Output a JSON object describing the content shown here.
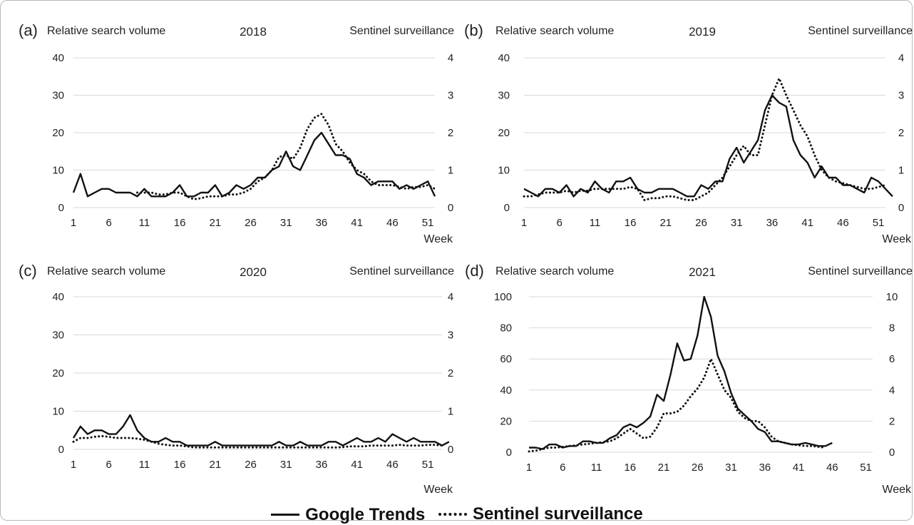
{
  "legend": {
    "gt_label": "Google Trends",
    "ss_label": "Sentinel surveillance"
  },
  "chart_data": [
    {
      "type": "line",
      "panel": "(a)",
      "title": "2018",
      "ylabel_left": "Relative search volume",
      "ylabel_right": "Sentinel surveillance",
      "xlabel": "Week",
      "x_ticks": [
        1,
        6,
        11,
        16,
        21,
        26,
        31,
        36,
        41,
        46,
        51
      ],
      "x_range": [
        1,
        52
      ],
      "ylim_left": [
        0,
        40
      ],
      "ylim_right": [
        0,
        4
      ],
      "yticks_left": [
        0,
        10,
        20,
        30,
        40
      ],
      "yticks_right": [
        0,
        1,
        2,
        3,
        4
      ],
      "grid": true,
      "series": [
        {
          "name": "Google Trends",
          "axis": "left",
          "style": "solid",
          "x_start": 1,
          "values": [
            4,
            9,
            3,
            4,
            5,
            5,
            4,
            4,
            4,
            3,
            5,
            3,
            3,
            3,
            4,
            6,
            3,
            3,
            4,
            4,
            6,
            3,
            4,
            6,
            5,
            6,
            8,
            8,
            10,
            11,
            15,
            11,
            10,
            14,
            18,
            20,
            17,
            14,
            14,
            13,
            9,
            8,
            6,
            7,
            7,
            7,
            5,
            6,
            5,
            6,
            7,
            3
          ]
        },
        {
          "name": "Sentinel surveillance",
          "axis": "right",
          "style": "dotted",
          "x_start": 10,
          "values": [
            0.4,
            0.4,
            0.4,
            0.35,
            0.35,
            0.4,
            0.4,
            0.3,
            0.22,
            0.25,
            0.3,
            0.3,
            0.3,
            0.35,
            0.35,
            0.4,
            0.5,
            0.7,
            0.8,
            1.0,
            1.35,
            1.4,
            1.3,
            1.6,
            2.1,
            2.4,
            2.5,
            2.2,
            1.7,
            1.5,
            1.2,
            1.0,
            0.9,
            0.7,
            0.6,
            0.6,
            0.6,
            0.55,
            0.5,
            0.55,
            0.55,
            0.6,
            0.5
          ]
        }
      ]
    },
    {
      "type": "line",
      "panel": "(b)",
      "title": "2019",
      "ylabel_left": "Relative search volume",
      "ylabel_right": "Sentinel surveillance",
      "xlabel": "Week",
      "x_ticks": [
        1,
        6,
        11,
        16,
        21,
        26,
        31,
        36,
        41,
        46,
        51
      ],
      "x_range": [
        1,
        52
      ],
      "ylim_left": [
        0,
        40
      ],
      "ylim_right": [
        0,
        4
      ],
      "yticks_left": [
        0,
        10,
        20,
        30,
        40
      ],
      "yticks_right": [
        0,
        1,
        2,
        3,
        4
      ],
      "grid": true,
      "series": [
        {
          "name": "Google Trends",
          "axis": "left",
          "style": "solid",
          "x_start": 1,
          "values": [
            5,
            4,
            3,
            5,
            5,
            4,
            6,
            3,
            5,
            4,
            7,
            5,
            4,
            7,
            7,
            8,
            5,
            4,
            4,
            5,
            5,
            5,
            4,
            3,
            3,
            6,
            5,
            7,
            7,
            13,
            16,
            12,
            15,
            18,
            26,
            30,
            28,
            27,
            18,
            14,
            12,
            8,
            11,
            8,
            8,
            6,
            6,
            5,
            4,
            8,
            7,
            5,
            3
          ]
        },
        {
          "name": "Sentinel surveillance",
          "axis": "right",
          "style": "dotted",
          "x_start": 1,
          "values": [
            0.3,
            0.3,
            0.35,
            0.4,
            0.4,
            0.4,
            0.45,
            0.4,
            0.45,
            0.45,
            0.5,
            0.5,
            0.5,
            0.5,
            0.5,
            0.55,
            0.5,
            0.2,
            0.25,
            0.25,
            0.3,
            0.3,
            0.25,
            0.2,
            0.2,
            0.3,
            0.4,
            0.6,
            0.8,
            1.1,
            1.4,
            1.65,
            1.4,
            1.4,
            2.2,
            3.0,
            3.45,
            3.0,
            2.6,
            2.2,
            1.9,
            1.4,
            1.0,
            0.8,
            0.7,
            0.65,
            0.6,
            0.55,
            0.5,
            0.5,
            0.55,
            0.6
          ]
        }
      ]
    },
    {
      "type": "line",
      "panel": "(c)",
      "title": "2020",
      "ylabel_left": "Relative search volume",
      "ylabel_right": "Sentinel surveillance",
      "xlabel": "Week",
      "x_ticks": [
        1,
        6,
        11,
        16,
        21,
        26,
        31,
        36,
        41,
        46,
        51
      ],
      "x_range": [
        1,
        53
      ],
      "ylim_left": [
        0,
        40
      ],
      "ylim_right": [
        0,
        4
      ],
      "yticks_left": [
        0,
        10,
        20,
        30,
        40
      ],
      "yticks_right": [
        0,
        1,
        2,
        3,
        4
      ],
      "grid": true,
      "series": [
        {
          "name": "Google Trends",
          "axis": "left",
          "style": "solid",
          "x_start": 1,
          "values": [
            3,
            6,
            4,
            5,
            5,
            4,
            4,
            6,
            9,
            5,
            3,
            2,
            2,
            3,
            2,
            2,
            1,
            1,
            1,
            1,
            2,
            1,
            1,
            1,
            1,
            1,
            1,
            1,
            1,
            2,
            1,
            1,
            2,
            1,
            1,
            1,
            2,
            2,
            1,
            2,
            3,
            2,
            2,
            3,
            2,
            4,
            3,
            2,
            3,
            2,
            2,
            2,
            1,
            2
          ]
        },
        {
          "name": "Sentinel surveillance",
          "axis": "right",
          "style": "dotted",
          "x_start": 1,
          "values": [
            0.2,
            0.3,
            0.3,
            0.33,
            0.35,
            0.33,
            0.3,
            0.3,
            0.3,
            0.28,
            0.25,
            0.2,
            0.15,
            0.12,
            0.1,
            0.1,
            0.08,
            0.05,
            0.05,
            0.05,
            0.05,
            0.05,
            0.05,
            0.05,
            0.05,
            0.05,
            0.05,
            0.05,
            0.05,
            0.05,
            0.05,
            0.05,
            0.05,
            0.05,
            0.05,
            0.05,
            0.05,
            0.05,
            0.06,
            0.08,
            0.08,
            0.08,
            0.1,
            0.1,
            0.1,
            0.1,
            0.12,
            0.1,
            0.1,
            0.1,
            0.12,
            0.12,
            0.1
          ]
        }
      ]
    },
    {
      "type": "line",
      "panel": "(d)",
      "title": "2021",
      "ylabel_left": "Relative search volume",
      "ylabel_right": "Sentinel surveillance",
      "xlabel": "Week",
      "x_ticks": [
        1,
        6,
        11,
        16,
        21,
        26,
        31,
        36,
        41,
        46,
        51
      ],
      "x_range": [
        1,
        52
      ],
      "ylim_left": [
        0,
        100
      ],
      "ylim_right": [
        0,
        10
      ],
      "yticks_left": [
        0,
        20,
        40,
        60,
        80,
        100
      ],
      "yticks_right": [
        0,
        2,
        4,
        6,
        8,
        10
      ],
      "grid": true,
      "series": [
        {
          "name": "Google Trends",
          "axis": "left",
          "style": "solid",
          "x_start": 1,
          "values": [
            3,
            3,
            2,
            5,
            5,
            3,
            4,
            4,
            7,
            7,
            6,
            6,
            9,
            11,
            16,
            18,
            16,
            19,
            23,
            37,
            33,
            50,
            70,
            59,
            60,
            75,
            100,
            87,
            62,
            52,
            38,
            28,
            24,
            20,
            15,
            13,
            7,
            7,
            6,
            5,
            5,
            6,
            5,
            4,
            4,
            6
          ]
        },
        {
          "name": "Sentinel surveillance",
          "axis": "right",
          "style": "dotted",
          "x_start": 1,
          "values": [
            0.05,
            0.1,
            0.2,
            0.3,
            0.3,
            0.35,
            0.4,
            0.45,
            0.5,
            0.55,
            0.6,
            0.65,
            0.7,
            0.9,
            1.2,
            1.5,
            1.2,
            0.9,
            1.0,
            1.6,
            2.5,
            2.5,
            2.6,
            3.0,
            3.6,
            4.1,
            4.8,
            6.0,
            5.0,
            4.0,
            3.5,
            2.6,
            2.2,
            2.0,
            2.0,
            1.6,
            1.0,
            0.7,
            0.6,
            0.5,
            0.45,
            0.4,
            0.4,
            0.35,
            0.3
          ]
        }
      ]
    }
  ]
}
